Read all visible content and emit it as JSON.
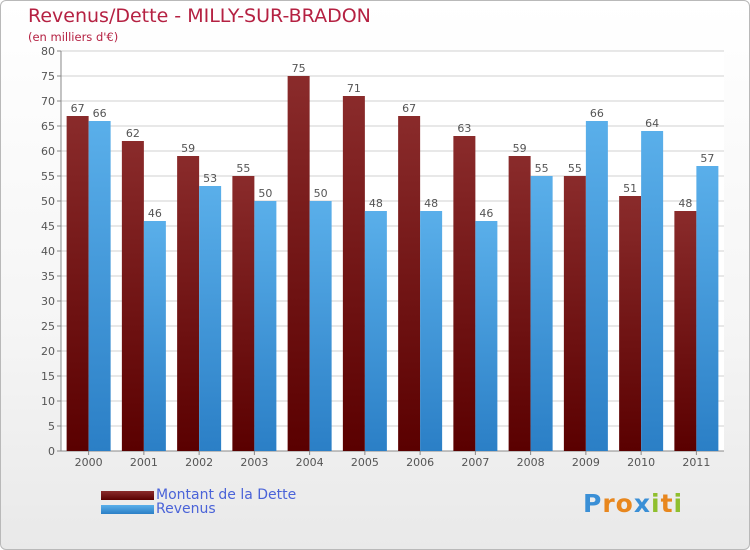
{
  "title": "Revenus/Dette - MILLY-SUR-BRADON",
  "subtitle": "(en milliers d'€)",
  "colors": {
    "title": "#b52142",
    "dette_top": "#8a2b2b",
    "dette_bottom": "#5a0000",
    "revenus_top": "#5aafea",
    "revenus_bottom": "#2b7fc6",
    "grid": "#d0d0d0",
    "legend_text": "#4a63d8"
  },
  "legend": {
    "dette_label": "Montant de la Dette",
    "revenus_label": "Revenus"
  },
  "logo": {
    "text": "Proxiti",
    "letter_colors": [
      "#3a8fd6",
      "#e8871e",
      "#e8871e",
      "#3a8fd6",
      "#8fbf2e",
      "#e8871e",
      "#8fbf2e"
    ]
  },
  "chart_data": {
    "type": "bar",
    "categories": [
      "2000",
      "2001",
      "2002",
      "2003",
      "2004",
      "2005",
      "2006",
      "2007",
      "2008",
      "2009",
      "2010",
      "2011"
    ],
    "series": [
      {
        "name": "Montant de la Dette",
        "values": [
          67,
          62,
          59,
          55,
          75,
          71,
          67,
          63,
          59,
          55,
          51,
          48
        ]
      },
      {
        "name": "Revenus",
        "values": [
          66,
          46,
          53,
          50,
          50,
          48,
          48,
          46,
          55,
          66,
          64,
          57
        ]
      }
    ],
    "ylim": [
      0,
      80
    ],
    "ytick_step": 5,
    "grid": true,
    "legend_position": "bottom-left",
    "data_labels": true
  }
}
